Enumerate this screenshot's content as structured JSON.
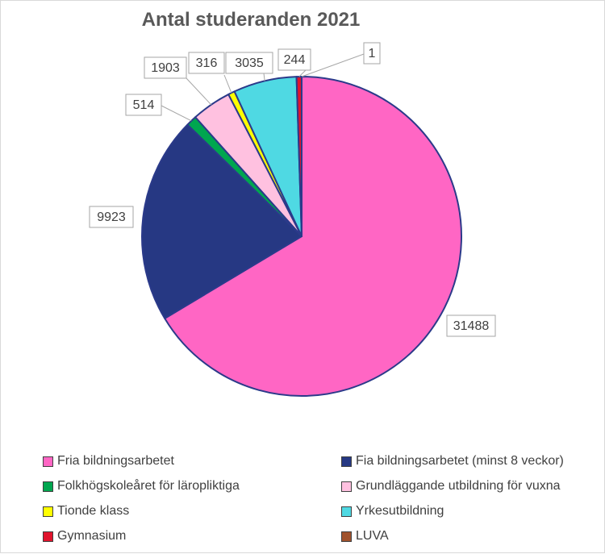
{
  "chart_data": {
    "type": "pie",
    "title": "Antal studeranden 2021",
    "categories": [
      "Fria bildningsarbetet",
      "Fia bildningsarbetet (minst 8 veckor)",
      "Folkhögskoleåret för läropliktiga",
      "Grundläggande utbildning för vuxna",
      "Tionde klass",
      "Yrkesutbildning",
      "Gymnasium",
      "LUVA"
    ],
    "values": [
      31488,
      9923,
      514,
      1903,
      316,
      3035,
      244,
      1
    ],
    "data_labels": [
      "31488",
      "9923",
      "514",
      "1903",
      "316",
      "3035",
      "244",
      "1"
    ],
    "colors": [
      "#ff66c4",
      "#263883",
      "#00a64f",
      "#ffc1e0",
      "#ffff00",
      "#4fd9e3",
      "#e0142d",
      "#a0522d"
    ],
    "legend": "bottom",
    "start_angle_deg": 0,
    "direction": "clockwise"
  }
}
